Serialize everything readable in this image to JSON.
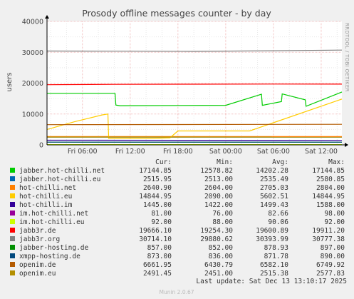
{
  "chart_data": {
    "type": "line",
    "title": "Prosody offline messages counter - by day",
    "ylabel": "users",
    "xlabel": "",
    "ylim": [
      0,
      40000
    ],
    "yticks": [
      "0",
      "10000",
      "20000",
      "30000",
      "40000"
    ],
    "x_ticks": [
      "Fri 06:00",
      "Fri 12:00",
      "Fri 18:00",
      "Sat 00:00",
      "Sat 06:00",
      "Sat 12:00"
    ],
    "x_tick_hours": [
      6,
      12,
      18,
      24,
      30,
      36
    ],
    "x_range_hours": [
      1.55,
      38.6
    ],
    "grid": true,
    "legend_placement": "bottom",
    "side_label": "RRDTOOL / TOBI OETIKER",
    "columns": [
      "Cur:",
      "Min:",
      "Avg:",
      "Max:"
    ],
    "series": [
      {
        "name": "jabber.hot-chilli.net",
        "color": "#00cc00",
        "cur": "17144.85",
        "min": "12578.82",
        "avg": "14202.28",
        "max": "17144.85",
        "x": [
          1.55,
          10.1,
          10.2,
          10.7,
          24,
          28.5,
          28.6,
          31,
          31.1,
          34,
          34.1,
          38.6
        ],
        "values": [
          16700,
          16700,
          12900,
          12700,
          12800,
          16400,
          12800,
          14000,
          16500,
          14600,
          12500,
          17144
        ]
      },
      {
        "name": "jabber.hot-chilli.eu",
        "color": "#0066b3",
        "cur": "2515.95",
        "min": "2513.00",
        "avg": "2535.49",
        "max": "2580.85",
        "x": [
          1.55,
          38.6
        ],
        "values": [
          2530,
          2520
        ]
      },
      {
        "name": "hot-chilli.net",
        "color": "#ff8000",
        "cur": "2640.90",
        "min": "2604.00",
        "avg": "2705.03",
        "max": "2804.00",
        "x": [
          1.55,
          38.6
        ],
        "values": [
          2700,
          2690
        ]
      },
      {
        "name": "hot-chilli.eu",
        "color": "#ffcc00",
        "cur": "14844.95",
        "min": "2090.00",
        "avg": "5602.51",
        "max": "14844.95",
        "x": [
          1.55,
          5,
          8.5,
          9.2,
          9.3,
          15,
          17,
          18,
          25,
          27,
          38.6
        ],
        "values": [
          5000,
          7500,
          9700,
          10000,
          2100,
          2100,
          2300,
          4500,
          4500,
          4500,
          14844
        ]
      },
      {
        "name": "hot-chilli.im",
        "color": "#330099",
        "cur": "1445.00",
        "min": "1422.00",
        "avg": "1499.43",
        "max": "1588.00",
        "x": [
          1.55,
          38.6
        ],
        "values": [
          1500,
          1450
        ]
      },
      {
        "name": "im.hot-chilli.net",
        "color": "#990099",
        "cur": "81.00",
        "min": "76.00",
        "avg": "82.66",
        "max": "98.00",
        "x": [
          1.55,
          38.6
        ],
        "values": [
          82,
          81
        ]
      },
      {
        "name": "im.hot-chilli.eu",
        "color": "#ccff00",
        "cur": "92.00",
        "min": "88.00",
        "avg": "90.06",
        "max": "92.00",
        "x": [
          1.55,
          38.6
        ],
        "values": [
          90,
          92
        ]
      },
      {
        "name": "jabb3r.de",
        "color": "#ff0000",
        "cur": "19666.10",
        "min": "19254.30",
        "avg": "19600.89",
        "max": "19911.20",
        "x": [
          1.55,
          10,
          20,
          30,
          38.6
        ],
        "values": [
          19500,
          19600,
          19650,
          19700,
          19666
        ]
      },
      {
        "name": "jabb3r.org",
        "color": "#808080",
        "cur": "30714.10",
        "min": "29880.62",
        "avg": "30393.99",
        "max": "30777.38",
        "x": [
          1.55,
          10,
          20,
          30,
          38.6
        ],
        "values": [
          30400,
          30350,
          30300,
          30500,
          30714
        ]
      },
      {
        "name": "jabber-hosting.de",
        "color": "#008f00",
        "cur": "857.00",
        "min": "852.00",
        "avg": "878.93",
        "max": "897.00",
        "x": [
          1.55,
          38.6
        ],
        "values": [
          880,
          857
        ]
      },
      {
        "name": "xmpp-hosting.de",
        "color": "#00487d",
        "cur": "873.00",
        "min": "836.00",
        "avg": "871.78",
        "max": "890.00",
        "x": [
          1.55,
          38.6
        ],
        "values": [
          870,
          873
        ]
      },
      {
        "name": "openim.de",
        "color": "#b35a00",
        "cur": "6661.95",
        "min": "6430.79",
        "avg": "6582.10",
        "max": "6749.92",
        "x": [
          1.55,
          38.6
        ],
        "values": [
          6550,
          6661
        ]
      },
      {
        "name": "openim.eu",
        "color": "#b38f00",
        "cur": "2491.45",
        "min": "2451.00",
        "avg": "2515.38",
        "max": "2577.83",
        "x": [
          1.55,
          38.6
        ],
        "values": [
          2520,
          2491
        ]
      }
    ]
  },
  "last_update": "Last update: Sat Dec 13 13:10:17 2025",
  "footer": "Munin 2.0.67"
}
